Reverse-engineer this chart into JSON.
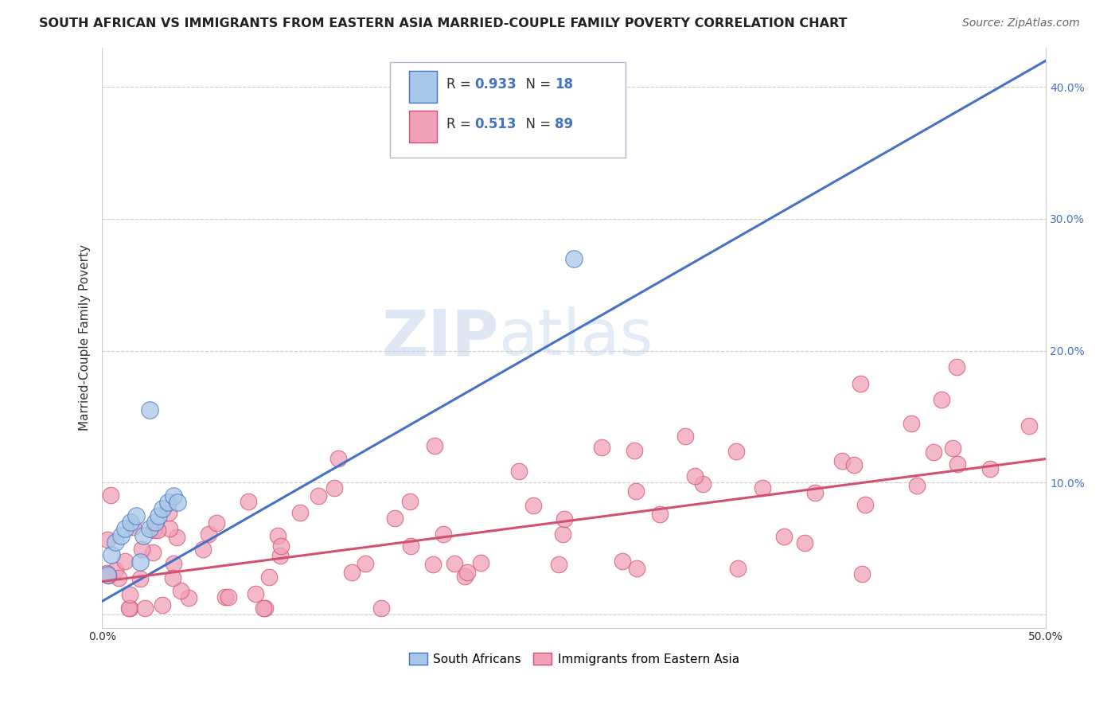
{
  "title": "SOUTH AFRICAN VS IMMIGRANTS FROM EASTERN ASIA MARRIED-COUPLE FAMILY POVERTY CORRELATION CHART",
  "source": "Source: ZipAtlas.com",
  "ylabel": "Married-Couple Family Poverty",
  "xlim": [
    0.0,
    0.5
  ],
  "ylim": [
    -0.01,
    0.43
  ],
  "xticks": [
    0.0,
    0.1,
    0.2,
    0.3,
    0.4,
    0.5
  ],
  "yticks": [
    0.0,
    0.1,
    0.2,
    0.3,
    0.4
  ],
  "color_sa": "#a8c8e8",
  "color_ea": "#f0a0b8",
  "line_color_sa": "#4472c4",
  "line_color_ea": "#d45070",
  "watermark_zip": "ZIP",
  "watermark_atlas": "atlas",
  "background_color": "#ffffff",
  "grid_color": "#cccccc",
  "sa_x": [
    0.003,
    0.005,
    0.007,
    0.01,
    0.012,
    0.015,
    0.018,
    0.02,
    0.022,
    0.025,
    0.028,
    0.03,
    0.032,
    0.035,
    0.038,
    0.04,
    0.025,
    0.25
  ],
  "sa_y": [
    0.03,
    0.045,
    0.055,
    0.06,
    0.065,
    0.07,
    0.075,
    0.04,
    0.06,
    0.065,
    0.07,
    0.075,
    0.08,
    0.085,
    0.09,
    0.085,
    0.155,
    0.27
  ],
  "sa_line_x": [
    0.0,
    0.5
  ],
  "sa_line_y": [
    0.01,
    0.42
  ],
  "ea_line_x": [
    0.0,
    0.5
  ],
  "ea_line_y": [
    0.025,
    0.118
  ],
  "legend_r1_val": "0.933",
  "legend_n1_val": "18",
  "legend_r2_val": "0.513",
  "legend_n2_val": "89",
  "r_color": "#4472c4",
  "n_color": "#4472c4"
}
